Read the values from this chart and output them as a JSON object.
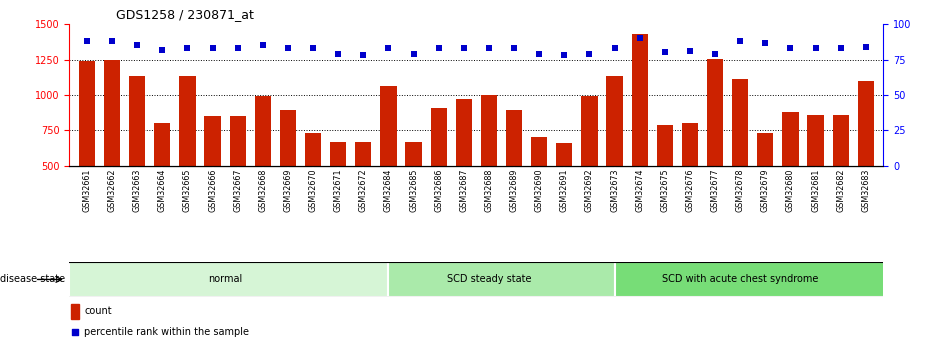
{
  "title": "GDS1258 / 230871_at",
  "samples": [
    "GSM32661",
    "GSM32662",
    "GSM32663",
    "GSM32664",
    "GSM32665",
    "GSM32666",
    "GSM32667",
    "GSM32668",
    "GSM32669",
    "GSM32670",
    "GSM32671",
    "GSM32672",
    "GSM32684",
    "GSM32685",
    "GSM32686",
    "GSM32687",
    "GSM32688",
    "GSM32689",
    "GSM32690",
    "GSM32691",
    "GSM32692",
    "GSM32673",
    "GSM32674",
    "GSM32675",
    "GSM32676",
    "GSM32677",
    "GSM32678",
    "GSM32679",
    "GSM32680",
    "GSM32681",
    "GSM32682",
    "GSM32683"
  ],
  "counts": [
    1240,
    1250,
    1130,
    800,
    1130,
    850,
    850,
    995,
    890,
    730,
    665,
    665,
    1060,
    665,
    910,
    970,
    1000,
    890,
    700,
    660,
    995,
    1130,
    1430,
    790,
    800,
    1255,
    1110,
    730,
    880,
    855,
    855,
    1100
  ],
  "percentiles": [
    88,
    88,
    85,
    82,
    83,
    83,
    83,
    85,
    83,
    83,
    79,
    78,
    83,
    79,
    83,
    83,
    83,
    83,
    79,
    78,
    79,
    83,
    90,
    80,
    81,
    79,
    88,
    87,
    83,
    83,
    83,
    84
  ],
  "group_labels": [
    "normal",
    "SCD steady state",
    "SCD with acute chest syndrome"
  ],
  "group_starts": [
    0,
    12,
    21
  ],
  "group_ends": [
    12,
    21,
    32
  ],
  "group_colors": [
    "#d6f5d6",
    "#aaeaaa",
    "#77dd77"
  ],
  "bar_color": "#cc2200",
  "dot_color": "#0000cc",
  "ylim_left": [
    500,
    1500
  ],
  "ylim_right": [
    0,
    100
  ],
  "yticks_left": [
    500,
    750,
    1000,
    1250,
    1500
  ],
  "yticks_right": [
    0,
    25,
    50,
    75,
    100
  ],
  "background_color": "#ffffff",
  "tick_bg_color": "#d4d4d4",
  "disease_state_label": "disease state"
}
